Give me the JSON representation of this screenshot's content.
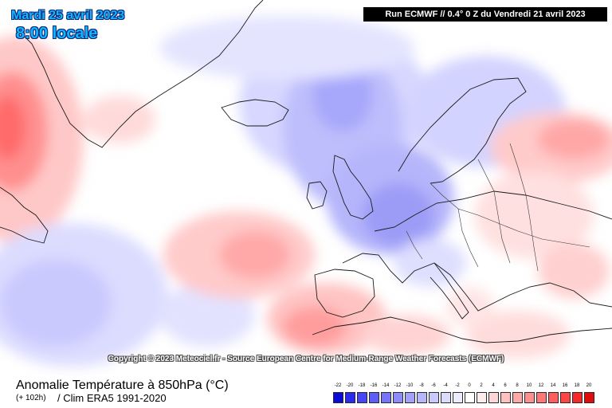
{
  "header": {
    "date": "Mardi 25 avril 2023",
    "time": "8:00 locale",
    "run": "Run ECMWF // 0.4° 0 Z du Vendredi 21 avril 2023"
  },
  "copyright": "Copyright © 2023 Meteociel.fr - Source European Centre for Medium-Range Weather Forecasts (ECMWF)",
  "footer": {
    "variable_title": "Anomalie Température à 850hPa (°C)",
    "run_step": "(+ 102h)",
    "climatology": "/ Clim ERA5 1991-2020"
  },
  "legend": {
    "labels": [
      "-22",
      "-20",
      "-18",
      "-16",
      "-14",
      "-12",
      "-10",
      "-8",
      "-6",
      "-4",
      "-2",
      "0",
      "2",
      "4",
      "6",
      "8",
      "10",
      "12",
      "14",
      "16",
      "18",
      "20"
    ],
    "colors": [
      "#0b0bd8",
      "#2a2af2",
      "#4646f6",
      "#5d5dfa",
      "#7575fb",
      "#8c8cfc",
      "#a2a2fd",
      "#b6b6fd",
      "#c9c9fe",
      "#dbdbfe",
      "#ececff",
      "#ffffff",
      "#ffecec",
      "#ffd6d6",
      "#ffc0c0",
      "#ffa8a8",
      "#ff9090",
      "#ff7878",
      "#ff5e5e",
      "#ff4444",
      "#f82828",
      "#e00c0c"
    ]
  },
  "colors": {
    "label_blue": "#12b5ff"
  }
}
